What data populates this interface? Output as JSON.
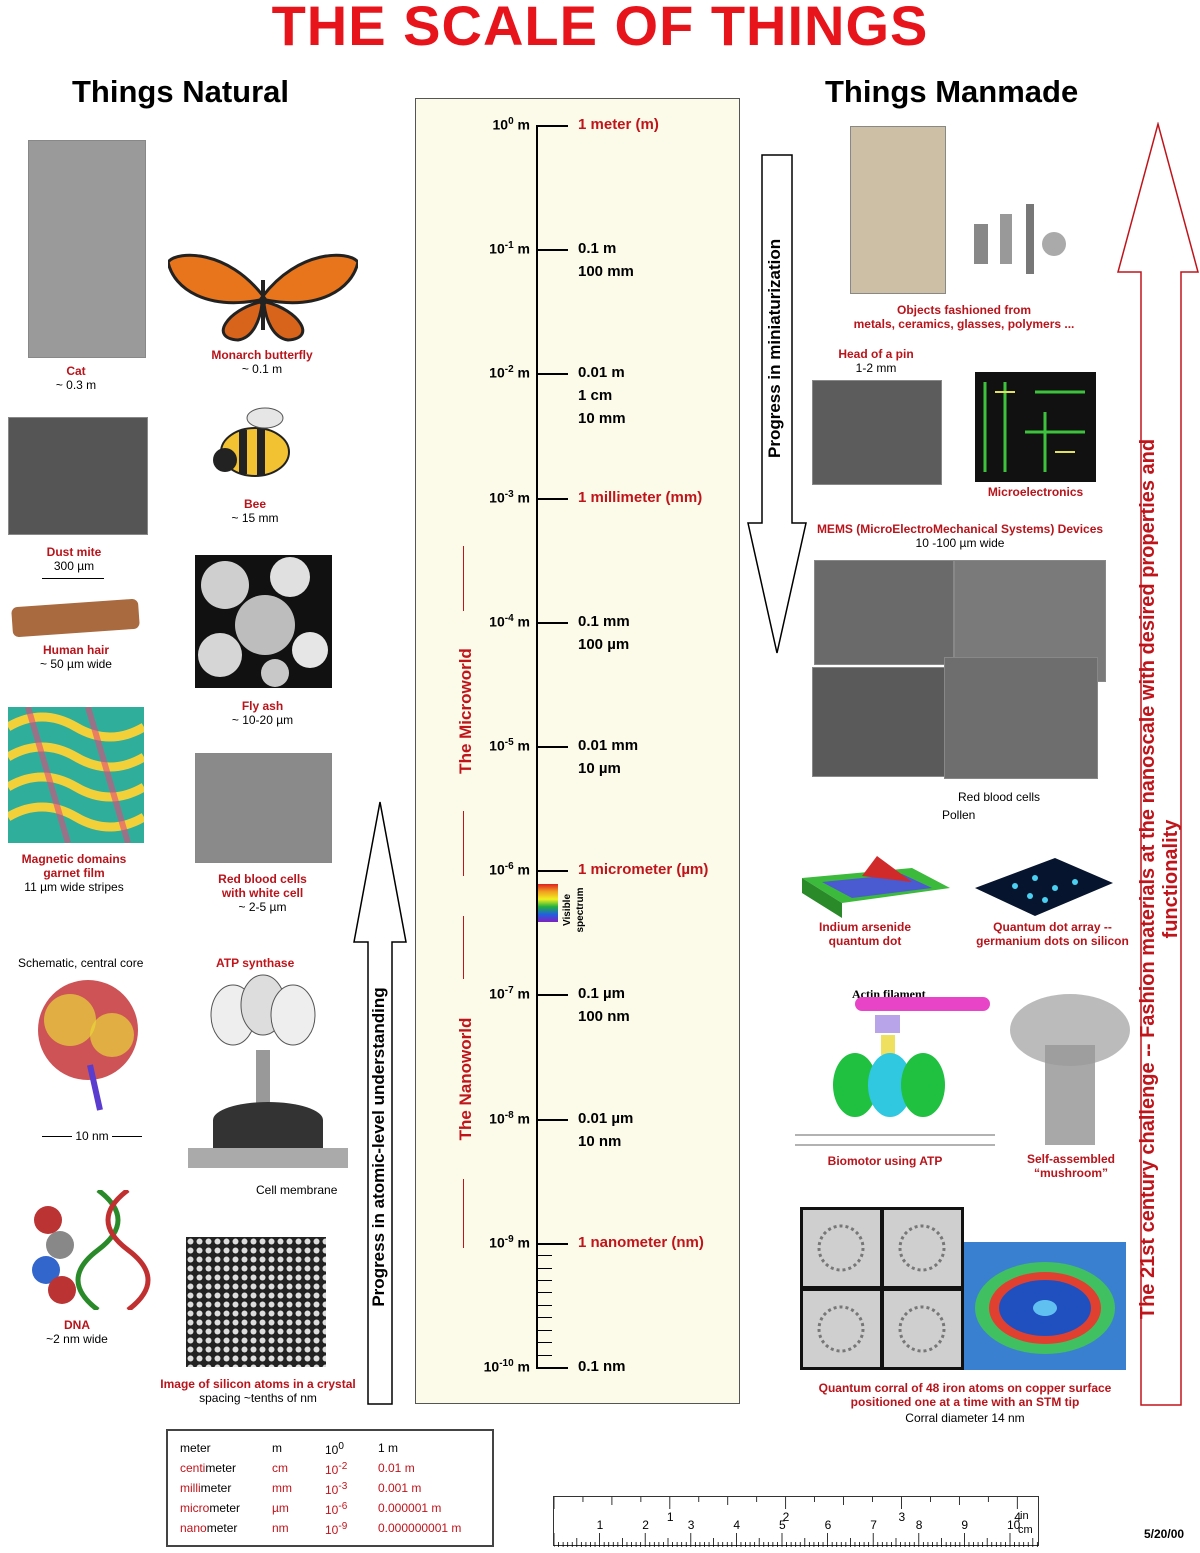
{
  "title": "THE SCALE OF THINGS",
  "headers": {
    "natural": "Things Natural",
    "manmade": "Things Manmade"
  },
  "natural": {
    "cat": {
      "name": "Cat",
      "size": "~ 0.3 m"
    },
    "butterfly": {
      "name": "Monarch butterfly",
      "size": "~ 0.1 m"
    },
    "dust_mite": {
      "name": "Dust mite",
      "size": "300 µm"
    },
    "bee": {
      "name": "Bee",
      "size": "~ 15 mm"
    },
    "hair": {
      "name": "Human hair",
      "size": "~ 50 µm wide"
    },
    "fly_ash": {
      "name": "Fly ash",
      "size": "~ 10-20 µm"
    },
    "magnetic": {
      "name": "Magnetic domains\ngarnet film",
      "size": "11 µm wide stripes"
    },
    "rbc": {
      "name": "Red blood cells\nwith white cell",
      "size": "~ 2-5 µm"
    },
    "schematic": "Schematic, central core",
    "atp": "ATP synthase",
    "ten_nm": "10 nm",
    "cell_membrane": "Cell membrane",
    "dna": {
      "name": "DNA",
      "size": "~2 nm wide"
    },
    "silicon": {
      "name": "Image of silicon atoms in a crystal",
      "size": "spacing ~tenths of nm"
    }
  },
  "manmade": {
    "objects": "Objects fashioned from\nmetals, ceramics, glasses, polymers ...",
    "pin": {
      "name": "Head of a pin",
      "size": "1-2 mm"
    },
    "micro": "Microelectronics",
    "mems": {
      "name": "MEMS (MicroElectroMechanical Systems) Devices",
      "size": "10 -100 µm wide"
    },
    "rbc_label": "Red blood cells",
    "pollen": "Pollen",
    "quantum_dot": "Indium arsenide\nquantum dot",
    "dot_array": "Quantum dot array --\ngermanium dots on silicon",
    "actin": "Actin filament",
    "biomotor": "Biomotor using ATP",
    "mushroom": "Self-assembled\n“mushroom”",
    "corral": "Quantum corral of 48 iron atoms on copper surface\npositioned one at a time with an STM tip",
    "corral_size": "Corral diameter 14 nm"
  },
  "scale": {
    "ticks": [
      {
        "base": "10",
        "exp": "0",
        "label": "1 meter (m)",
        "red": true
      },
      {
        "base": "10",
        "exp": "-1",
        "label": "0.1 m\n100 mm",
        "red": false
      },
      {
        "base": "10",
        "exp": "-2",
        "label": "0.01 m\n1 cm\n10 mm",
        "red": false
      },
      {
        "base": "10",
        "exp": "-3",
        "label": "1 millimeter (mm)",
        "red": true
      },
      {
        "base": "10",
        "exp": "-4",
        "label": "0.1 mm\n100 µm",
        "red": false
      },
      {
        "base": "10",
        "exp": "-5",
        "label": "0.01 mm\n10 µm",
        "red": false
      },
      {
        "base": "10",
        "exp": "-6",
        "label": "1 micrometer (µm)",
        "red": true
      },
      {
        "base": "10",
        "exp": "-7",
        "label": "0.1 µm\n100 nm",
        "red": false
      },
      {
        "base": "10",
        "exp": "-8",
        "label": "0.01 µm\n10 nm",
        "red": false
      },
      {
        "base": "10",
        "exp": "-9",
        "label": "1 nanometer (nm)",
        "red": true
      },
      {
        "base": "10",
        "exp": "-10",
        "label": "0.1 nm",
        "red": false
      }
    ],
    "unit": "m",
    "microworld": "The Microworld",
    "nanoworld": "The Nanoworld",
    "visible": "Visible\nspectrum"
  },
  "arrows": {
    "atomic": "Progress in atomic-level understanding",
    "miniaturization": "Progress in miniaturization",
    "challenge": "The 21st century challenge -- Fashion materials at the nanoscale with desired properties and\nfunctionality"
  },
  "units": [
    {
      "name": "meter",
      "prefix": "",
      "rest": "meter",
      "sym": "m",
      "base": "10",
      "exp": "0",
      "val": "1 m"
    },
    {
      "name": "centimeter",
      "prefix": "centi",
      "rest": "meter",
      "sym": "cm",
      "base": "10",
      "exp": "-2",
      "val": "0.01 m"
    },
    {
      "name": "millimeter",
      "prefix": "milli",
      "rest": "meter",
      "sym": "mm",
      "base": "10",
      "exp": "-3",
      "val": "0.001 m"
    },
    {
      "name": "micrometer",
      "prefix": "micro",
      "rest": "meter",
      "sym": "µm",
      "base": "10",
      "exp": "-6",
      "val": "0.000001 m"
    },
    {
      "name": "nanometer",
      "prefix": "nano",
      "rest": "meter",
      "sym": "nm",
      "base": "10",
      "exp": "-9",
      "val": "0.000000001 m"
    }
  ],
  "ruler": {
    "cm": [
      "1",
      "2",
      "3",
      "4",
      "5",
      "6",
      "7",
      "8",
      "9",
      "10"
    ],
    "in": [
      "1",
      "2",
      "3",
      "4"
    ],
    "cm_unit": "cm",
    "in_unit": "in"
  },
  "date": "5/20/00",
  "colors": {
    "title": "#e8141b",
    "accent": "#b8141b",
    "panel": "#fcfbea"
  }
}
